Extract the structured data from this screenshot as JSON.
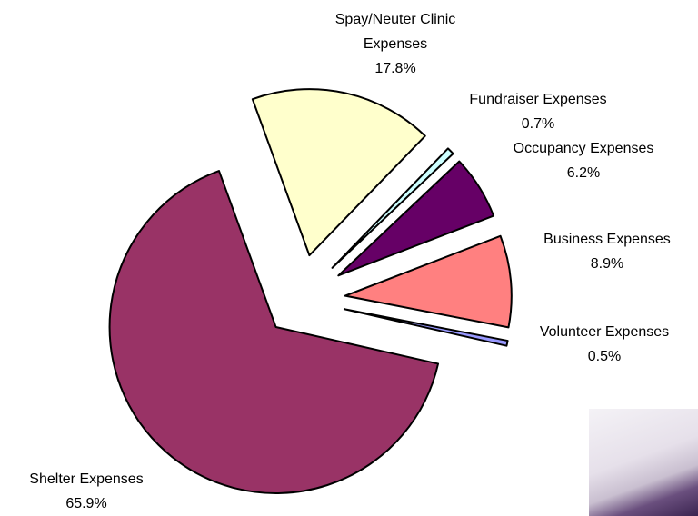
{
  "chart_data": {
    "type": "pie",
    "categories": [
      "Spay/Neuter Clinic Expenses",
      "Fundraiser Expenses",
      "Occupancy Expenses",
      "Business Expenses",
      "Volunteer Expenses",
      "Shelter Expenses"
    ],
    "values": [
      17.8,
      0.7,
      6.2,
      8.9,
      0.5,
      65.9
    ],
    "value_labels": [
      "17.8%",
      "0.7%",
      "6.2%",
      "8.9%",
      "0.5%",
      "65.9%"
    ],
    "colors": [
      "#ffffcc",
      "#ccffff",
      "#660066",
      "#ff8080",
      "#9999ff",
      "#993366"
    ],
    "exploded": true
  }
}
